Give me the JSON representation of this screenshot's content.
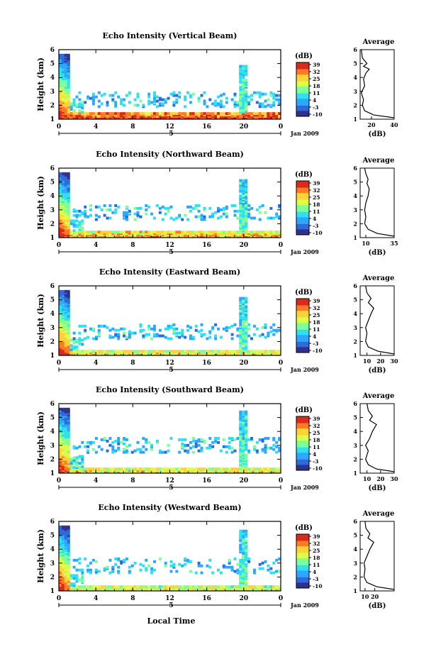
{
  "figure": {
    "xlabel": "Local Time",
    "date_label": "Jan 2009",
    "day_label": "5",
    "colorbar_unit": "(dB)",
    "colorbar_ticks": [
      "39",
      "32",
      "25",
      "18",
      "11",
      "4",
      "-3",
      "-10"
    ],
    "avg_title": "Average",
    "avg_xlabel": "(dB)",
    "ylabel": "Height (km)",
    "colors": {
      "scale": [
        "#30308f",
        "#2f6bd8",
        "#2ea7ff",
        "#2fe0f0",
        "#7dff9a",
        "#d9ff4a",
        "#ffd23a",
        "#ff7a22",
        "#d92b1c"
      ]
    }
  },
  "chart_data": [
    {
      "type": "heatmap",
      "title": "Echo Intensity (Vertical Beam)",
      "x_ticks": [
        "0",
        "4",
        "8",
        "12",
        "16",
        "20",
        "0"
      ],
      "y_ticks": [
        "1",
        "2",
        "3",
        "4",
        "5",
        "6"
      ],
      "xlim": [
        0,
        24
      ],
      "ylim": [
        1,
        6
      ],
      "value_range": [
        -10,
        39
      ],
      "low_layer": {
        "top_km": 1.35,
        "level": 35
      },
      "cloud_band": {
        "start_h": 19.5,
        "end_h": 20.4,
        "top_km": 4.8
      },
      "clutter_km": 2.3,
      "average_profile": {
        "xlim": [
          10,
          40
        ],
        "x_ticks": [
          "20",
          "40"
        ],
        "ylim": [
          1,
          6
        ],
        "points": [
          [
            40,
            1.1
          ],
          [
            22,
            1.3
          ],
          [
            14,
            1.6
          ],
          [
            12,
            2.0
          ],
          [
            13,
            2.4
          ],
          [
            11,
            2.9
          ],
          [
            14,
            3.4
          ],
          [
            13,
            3.9
          ],
          [
            15,
            4.3
          ],
          [
            18,
            4.6
          ],
          [
            13,
            4.8
          ],
          [
            16,
            5.0
          ],
          [
            12,
            5.4
          ],
          [
            11,
            6.0
          ]
        ]
      }
    },
    {
      "type": "heatmap",
      "title": "Echo Intensity (Northward Beam)",
      "x_ticks": [
        "0",
        "4",
        "8",
        "12",
        "16",
        "20",
        "0"
      ],
      "y_ticks": [
        "1",
        "2",
        "3",
        "4",
        "5",
        "6"
      ],
      "xlim": [
        0,
        24
      ],
      "ylim": [
        1,
        6
      ],
      "value_range": [
        -10,
        39
      ],
      "low_layer": {
        "top_km": 1.35,
        "level": 28
      },
      "cloud_band": {
        "start_h": 19.4,
        "end_h": 20.4,
        "top_km": 5.0
      },
      "clutter_km": 2.7,
      "average_profile": {
        "xlim": [
          5,
          35
        ],
        "x_ticks": [
          "10",
          "35"
        ],
        "ylim": [
          1,
          6
        ],
        "points": [
          [
            35,
            1.1
          ],
          [
            20,
            1.3
          ],
          [
            12,
            1.6
          ],
          [
            9,
            2.0
          ],
          [
            10,
            2.5
          ],
          [
            9,
            3.0
          ],
          [
            10,
            3.5
          ],
          [
            12,
            4.0
          ],
          [
            13,
            4.5
          ],
          [
            11,
            4.9
          ],
          [
            12,
            5.2
          ],
          [
            10,
            5.6
          ],
          [
            9,
            6.0
          ]
        ]
      }
    },
    {
      "type": "heatmap",
      "title": "Echo Intensity (Eastward Beam)",
      "x_ticks": [
        "0",
        "4",
        "8",
        "12",
        "16",
        "20",
        "0"
      ],
      "y_ticks": [
        "1",
        "2",
        "3",
        "4",
        "5",
        "6"
      ],
      "xlim": [
        0,
        24
      ],
      "ylim": [
        1,
        6
      ],
      "value_range": [
        -10,
        39
      ],
      "low_layer": {
        "top_km": 1.3,
        "level": 24
      },
      "cloud_band": {
        "start_h": 19.5,
        "end_h": 20.3,
        "top_km": 5.0
      },
      "clutter_km": 2.6,
      "average_profile": {
        "xlim": [
          5,
          30
        ],
        "x_ticks": [
          "10",
          "20",
          "30"
        ],
        "ylim": [
          1,
          6
        ],
        "points": [
          [
            30,
            1.1
          ],
          [
            18,
            1.3
          ],
          [
            11,
            1.6
          ],
          [
            9,
            2.0
          ],
          [
            10,
            2.6
          ],
          [
            9,
            3.0
          ],
          [
            11,
            3.5
          ],
          [
            13,
            4.0
          ],
          [
            15,
            4.4
          ],
          [
            11,
            4.8
          ],
          [
            13,
            5.1
          ],
          [
            10,
            5.5
          ],
          [
            9,
            6.0
          ]
        ]
      }
    },
    {
      "type": "heatmap",
      "title": "Echo Intensity (Southward Beam)",
      "x_ticks": [
        "0",
        "4",
        "8",
        "12",
        "16",
        "20",
        "0"
      ],
      "y_ticks": [
        "1",
        "2",
        "3",
        "4",
        "5",
        "6"
      ],
      "xlim": [
        0,
        24
      ],
      "ylim": [
        1,
        6
      ],
      "value_range": [
        -10,
        39
      ],
      "low_layer": {
        "top_km": 1.3,
        "level": 24
      },
      "cloud_band": {
        "start_h": 19.4,
        "end_h": 20.3,
        "top_km": 5.3
      },
      "clutter_km": 2.9,
      "average_profile": {
        "xlim": [
          5,
          30
        ],
        "x_ticks": [
          "10",
          "20",
          "30"
        ],
        "ylim": [
          1,
          6
        ],
        "points": [
          [
            30,
            1.1
          ],
          [
            17,
            1.3
          ],
          [
            11,
            1.6
          ],
          [
            9,
            2.0
          ],
          [
            11,
            2.6
          ],
          [
            9,
            3.0
          ],
          [
            12,
            3.5
          ],
          [
            14,
            4.0
          ],
          [
            17,
            4.5
          ],
          [
            12,
            4.8
          ],
          [
            14,
            5.1
          ],
          [
            11,
            5.5
          ],
          [
            10,
            6.0
          ]
        ]
      }
    },
    {
      "type": "heatmap",
      "title": "Echo Intensity (Westward Beam)",
      "x_ticks": [
        "0",
        "4",
        "8",
        "12",
        "16",
        "20",
        "0"
      ],
      "y_ticks": [
        "1",
        "2",
        "3",
        "4",
        "5",
        "6"
      ],
      "xlim": [
        0,
        24
      ],
      "ylim": [
        1,
        6
      ],
      "value_range": [
        -10,
        39
      ],
      "low_layer": {
        "top_km": 1.3,
        "level": 22
      },
      "cloud_band": {
        "start_h": 19.5,
        "end_h": 20.3,
        "top_km": 5.2
      },
      "clutter_km": 2.7,
      "average_profile": {
        "xlim": [
          5,
          40
        ],
        "x_ticks": [
          "10",
          "20"
        ],
        "ylim": [
          1,
          6
        ],
        "points": [
          [
            40,
            1.1
          ],
          [
            22,
            1.3
          ],
          [
            12,
            1.6
          ],
          [
            9,
            2.0
          ],
          [
            10,
            2.6
          ],
          [
            9,
            3.0
          ],
          [
            12,
            3.5
          ],
          [
            15,
            4.0
          ],
          [
            19,
            4.5
          ],
          [
            13,
            4.8
          ],
          [
            15,
            5.1
          ],
          [
            11,
            5.5
          ],
          [
            10,
            6.0
          ]
        ]
      }
    }
  ]
}
